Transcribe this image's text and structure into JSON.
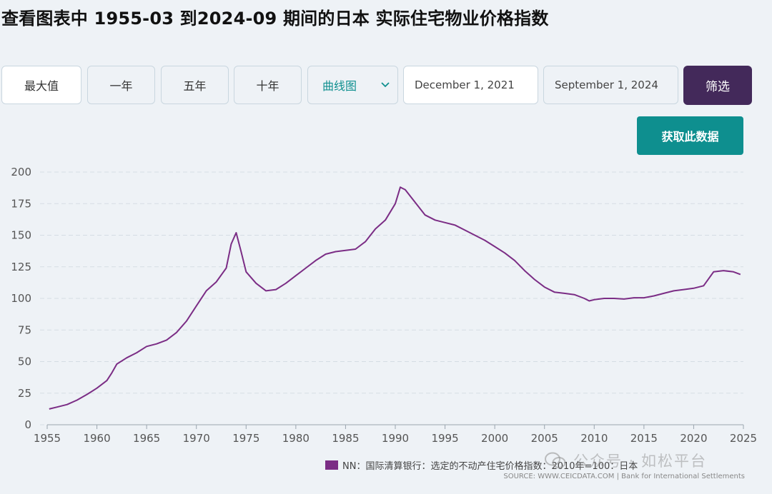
{
  "title": "查看图表中 1955-03 到2024-09 期间的日本 实际住宅物业价格指数",
  "controls": {
    "range_buttons": [
      "最大值",
      "一年",
      "五年",
      "十年"
    ],
    "chart_type": "曲线图",
    "start_date": "December 1, 2021",
    "end_date": "September 1, 2024",
    "filter_label": "筛选",
    "get_data_label": "获取此数据"
  },
  "legend_label": "NN：国际清算银行：选定的不动产住宅价格指数：2010年=100：日本",
  "source_text": "SOURCE: WWW.CEICDATA.COM | Bank for International Settlements",
  "watermark_text": "公众号 · 如松平台",
  "colors": {
    "line": "#7b2d85",
    "accent": "#0e8f8f",
    "filter_button": "#43295a"
  },
  "chart_data": {
    "type": "line",
    "title": "",
    "xlabel": "",
    "ylabel": "",
    "xlim": [
      1955,
      2025
    ],
    "ylim": [
      0,
      200
    ],
    "yticks": [
      0,
      25,
      50,
      75,
      100,
      125,
      150,
      175,
      200
    ],
    "xticks": [
      1955,
      1960,
      1965,
      1970,
      1975,
      1980,
      1985,
      1990,
      1995,
      2000,
      2005,
      2010,
      2015,
      2020,
      2025
    ],
    "grid": "horizontal-dashed",
    "legend_position": "bottom-right",
    "series": [
      {
        "name": "NN：国际清算银行：选定的不动产住宅价格指数：2010年=100：日本",
        "x": [
          1955.2,
          1956,
          1957,
          1958,
          1959,
          1960,
          1961,
          1961.5,
          1962,
          1963,
          1964,
          1965,
          1966,
          1967,
          1968,
          1969,
          1970,
          1971,
          1972,
          1973,
          1973.5,
          1974,
          1974.5,
          1975,
          1976,
          1977,
          1978,
          1979,
          1980,
          1981,
          1982,
          1983,
          1984,
          1985,
          1986,
          1987,
          1988,
          1989,
          1990,
          1990.5,
          1991,
          1992,
          1993,
          1994,
          1995,
          1996,
          1997,
          1998,
          1999,
          2000,
          2001,
          2002,
          2003,
          2004,
          2005,
          2006,
          2007,
          2008,
          2009,
          2009.5,
          2010,
          2011,
          2012,
          2013,
          2014,
          2015,
          2016,
          2017,
          2018,
          2019,
          2020,
          2021,
          2022,
          2023,
          2024,
          2024.7
        ],
        "values": [
          12.5,
          14,
          16,
          19.5,
          24,
          29,
          35,
          41,
          48,
          53,
          57,
          62,
          64,
          67,
          73,
          82,
          94,
          106,
          113,
          124,
          143,
          152,
          137,
          121,
          112,
          106,
          107,
          112,
          118,
          124,
          130,
          135,
          137,
          138,
          139,
          145,
          155,
          162,
          175,
          188,
          186,
          176,
          166,
          162,
          160,
          158,
          154,
          150,
          146,
          141,
          136,
          130,
          122,
          115,
          109,
          105,
          104,
          103,
          100,
          98,
          99,
          100,
          100,
          99.5,
          100.5,
          100.5,
          102,
          104,
          106,
          107,
          108,
          110,
          121,
          122,
          121,
          119
        ]
      }
    ]
  }
}
